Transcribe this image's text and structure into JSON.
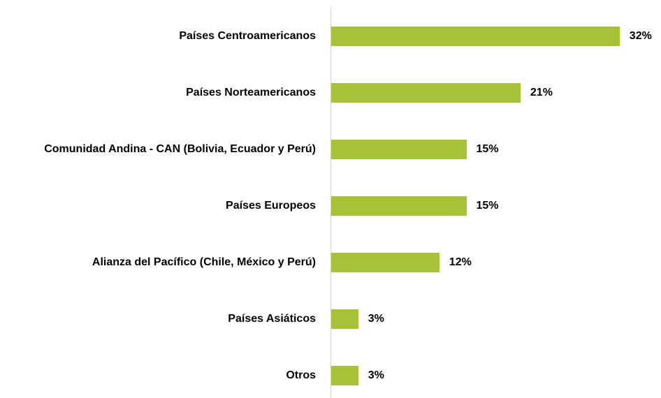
{
  "chart_data": {
    "type": "bar",
    "orientation": "horizontal",
    "categories": [
      "Países Centroamericanos",
      "Países Norteamericanos",
      "Comunidad Andina - CAN (Bolivia, Ecuador y Perú)",
      "Países Europeos",
      "Alianza del Pacífico (Chile, México y Perú)",
      "Países Asiáticos",
      "Otros"
    ],
    "values": [
      32,
      21,
      15,
      15,
      12,
      3,
      3
    ],
    "value_labels": [
      "32%",
      "21%",
      "15%",
      "15%",
      "12%",
      "3%",
      "3%"
    ],
    "color": "#a5c239"
  }
}
